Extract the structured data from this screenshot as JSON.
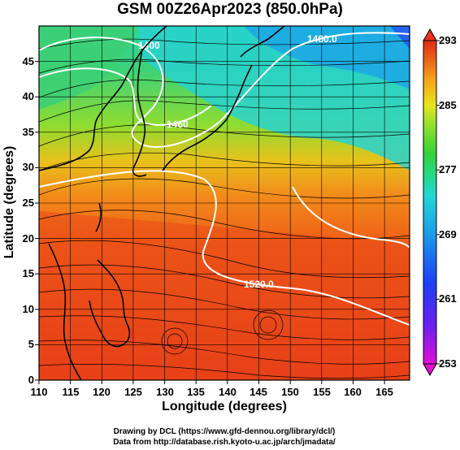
{
  "title": "GSM 00Z26Apr2023 (850.0hPa)",
  "x_axis": {
    "label": "Longitude (degrees)",
    "ticks": [
      "110",
      "115",
      "120",
      "125",
      "130",
      "135",
      "140",
      "145",
      "150",
      "155",
      "160",
      "165"
    ]
  },
  "y_axis": {
    "label": "Latitude (degrees)",
    "ticks": [
      "0",
      "5",
      "10",
      "15",
      "20",
      "25",
      "30",
      "35",
      "40",
      "45"
    ]
  },
  "colorbar": {
    "ticks": [
      "253",
      "261",
      "269",
      "277",
      "285",
      "293"
    ],
    "colors": [
      "#e10fd6",
      "#7a1cf0",
      "#1d3ef5",
      "#1c9be8",
      "#22d6d6",
      "#25d98a",
      "#33d23a",
      "#9ee22a",
      "#e9e51d",
      "#f5a11b",
      "#ee6018",
      "#df2a14"
    ]
  },
  "contour_labels": [
    "1400",
    "1460",
    "1520.0",
    "1480.0"
  ],
  "credits": {
    "line1": "Drawing by DCL (https://www.gfd-dennou.org/library/dcl/)",
    "line2": "Data from http://database.rish.kyoto-u.ac.jp/arch/jmadata/"
  },
  "chart_data": {
    "type": "heatmap",
    "title": "GSM 00Z26Apr2023 (850.0hPa)",
    "xlabel": "Longitude (degrees)",
    "ylabel": "Latitude (degrees)",
    "xlim": [
      110,
      169
    ],
    "ylim": [
      0,
      50
    ],
    "colorbar_range": [
      253,
      293
    ],
    "contour_labels": [
      "1400",
      "1460",
      "1520.0",
      "1480.0"
    ]
  }
}
